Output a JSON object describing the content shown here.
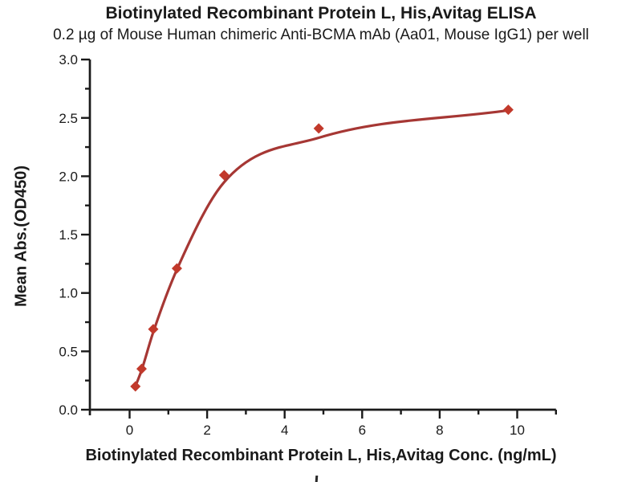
{
  "chart_data": {
    "type": "scatter",
    "title": "Biotinylated Recombinant Protein L, His,Avitag ELISA",
    "subtitle": "0.2 µg of Mouse Human chimeric Anti-BCMA mAb (Aa01, Mouse IgG1) per well",
    "xlabel": "Biotinylated Recombinant Protein L, His,Avitag Conc. (ng/mL)",
    "ylabel": "Mean Abs.(OD450)",
    "x": [
      0.15,
      0.31,
      0.61,
      1.22,
      2.44,
      4.88,
      9.77
    ],
    "y": [
      0.2,
      0.35,
      0.69,
      1.21,
      2.01,
      2.41,
      2.57
    ],
    "fit_curve_points": [
      {
        "x": 0.15,
        "y": 0.2
      },
      {
        "x": 0.31,
        "y": 0.34
      },
      {
        "x": 0.61,
        "y": 0.665
      },
      {
        "x": 1.22,
        "y": 1.2
      },
      {
        "x": 2.44,
        "y": 1.95
      },
      {
        "x": 4.88,
        "y": 2.33
      },
      {
        "x": 9.77,
        "y": 2.565
      }
    ],
    "xlim": [
      -1,
      11
    ],
    "ylim": [
      0,
      3
    ],
    "x_major_ticks": [
      0,
      2,
      4,
      6,
      8,
      10
    ],
    "x_minor_ticks": [
      1,
      3,
      5,
      7,
      9,
      11
    ],
    "y_major_ticks": [
      0,
      0.5,
      1,
      1.5,
      2,
      2.5,
      3
    ],
    "y_minor_ticks": [
      0.25,
      0.75,
      1.25,
      1.75,
      2.25,
      2.75
    ],
    "y_tick_decimals": 1,
    "grid": false,
    "legend": null,
    "marker_shape": "diamond",
    "colors": {
      "line": "#A63734",
      "marker": "#C2392B",
      "axis": "#1a1a1a",
      "text": "#1a1a1a",
      "background": "#ffffff"
    }
  }
}
